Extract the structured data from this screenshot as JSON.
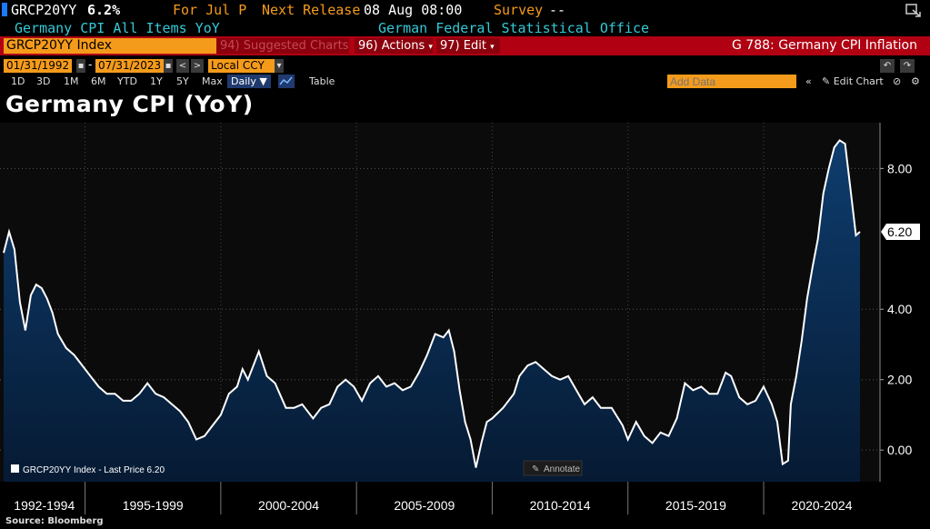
{
  "header": {
    "ticker": "GRCP20YY",
    "last_value": "6.2%",
    "period_label": "For Jul P",
    "next_release_label": "Next Release",
    "next_release_date": "08 Aug 08:00",
    "survey_label": "Survey",
    "survey_value": "--",
    "security_name": "Germany CPI All Items YoY",
    "source_name": "German Federal Statistical Office"
  },
  "toolbar": {
    "index_field": "GRCP20YY Index",
    "suggested_charts": "94) Suggested Charts",
    "actions": "96) Actions",
    "edit": "97) Edit",
    "chart_id": "G 788: Germany CPI Inflation"
  },
  "date_range": {
    "start": "01/31/1992",
    "end": "07/31/2023",
    "currency": "Local CCY"
  },
  "range_buttons": [
    "1D",
    "3D",
    "1M",
    "6M",
    "YTD",
    "1Y",
    "5Y",
    "Max"
  ],
  "frequency": "Daily ▼",
  "table_label": "Table",
  "add_data_placeholder": "Add Data",
  "edit_chart_label": "Edit Chart",
  "colors": {
    "accent_orange": "#f59b1b",
    "bar_red": "#b00012",
    "line": "#ffffff",
    "area_top": "#0e3d6e",
    "area_bottom": "#061a33"
  },
  "chart_data": {
    "type": "area",
    "title": "Germany CPI (YoY)",
    "series": [
      {
        "name": "GRCP20YY Index",
        "x": [
          1992.0,
          1992.2,
          1992.4,
          1992.6,
          1992.8,
          1993.0,
          1993.2,
          1993.4,
          1993.6,
          1993.8,
          1994.0,
          1994.3,
          1994.6,
          1994.9,
          1995.2,
          1995.5,
          1995.8,
          1996.1,
          1996.4,
          1996.7,
          1997.0,
          1997.3,
          1997.6,
          1997.9,
          1998.2,
          1998.5,
          1998.8,
          1999.1,
          1999.4,
          1999.7,
          2000.0,
          2000.3,
          2000.6,
          2000.8,
          2001.0,
          2001.4,
          2001.7,
          2002.0,
          2002.4,
          2002.7,
          2003.0,
          2003.4,
          2003.7,
          2004.0,
          2004.3,
          2004.6,
          2004.9,
          2005.2,
          2005.5,
          2005.8,
          2006.1,
          2006.4,
          2006.7,
          2007.0,
          2007.3,
          2007.6,
          2007.9,
          2008.2,
          2008.4,
          2008.6,
          2008.8,
          2009.0,
          2009.2,
          2009.4,
          2009.6,
          2009.8,
          2010.0,
          2010.4,
          2010.8,
          2011.0,
          2011.3,
          2011.6,
          2011.9,
          2012.2,
          2012.5,
          2012.8,
          2013.1,
          2013.4,
          2013.7,
          2014.0,
          2014.4,
          2014.8,
          2015.0,
          2015.3,
          2015.6,
          2015.9,
          2016.2,
          2016.5,
          2016.8,
          2017.1,
          2017.4,
          2017.7,
          2018.0,
          2018.3,
          2018.6,
          2018.8,
          2019.1,
          2019.4,
          2019.7,
          2020.0,
          2020.3,
          2020.5,
          2020.7,
          2020.9,
          2021.0,
          2021.2,
          2021.4,
          2021.6,
          2021.8,
          2022.0,
          2022.2,
          2022.4,
          2022.6,
          2022.8,
          2023.0,
          2023.2,
          2023.4,
          2023.55
        ],
        "y": [
          5.6,
          6.2,
          5.7,
          4.2,
          3.4,
          4.4,
          4.7,
          4.6,
          4.3,
          3.9,
          3.3,
          2.9,
          2.7,
          2.4,
          2.1,
          1.8,
          1.6,
          1.6,
          1.4,
          1.4,
          1.6,
          1.9,
          1.6,
          1.5,
          1.3,
          1.1,
          0.8,
          0.3,
          0.4,
          0.7,
          1.0,
          1.6,
          1.8,
          2.3,
          2.0,
          2.8,
          2.1,
          1.9,
          1.2,
          1.2,
          1.3,
          0.9,
          1.2,
          1.3,
          1.8,
          2.0,
          1.8,
          1.4,
          1.9,
          2.1,
          1.8,
          1.9,
          1.7,
          1.8,
          2.2,
          2.7,
          3.3,
          3.2,
          3.4,
          2.8,
          1.7,
          0.8,
          0.3,
          -0.5,
          0.2,
          0.8,
          0.9,
          1.2,
          1.6,
          2.1,
          2.4,
          2.5,
          2.3,
          2.1,
          2.0,
          2.1,
          1.7,
          1.3,
          1.5,
          1.2,
          1.2,
          0.7,
          0.3,
          0.8,
          0.4,
          0.2,
          0.5,
          0.4,
          0.9,
          1.9,
          1.7,
          1.8,
          1.6,
          1.6,
          2.2,
          2.1,
          1.5,
          1.3,
          1.4,
          1.8,
          1.3,
          0.8,
          -0.4,
          -0.3,
          1.3,
          2.1,
          3.1,
          4.3,
          5.2,
          6.0,
          7.3,
          8.0,
          8.6,
          8.8,
          8.7,
          7.4,
          6.1,
          6.2
        ]
      }
    ],
    "legend": "GRCP20YY Index - Last Price 6.20",
    "last_price": "6.20",
    "annotate_label": "Annotate",
    "x_period_labels": [
      "1992-1994",
      "1995-1999",
      "2000-2004",
      "2005-2009",
      "2010-2014",
      "2015-2019",
      "2020-2024"
    ],
    "y_ticks": [
      "8.00",
      "4.00",
      "2.00",
      "0.00"
    ],
    "ylim": [
      -0.9,
      9.3
    ],
    "xlim": [
      1992.0,
      2023.75
    ],
    "grid": true,
    "legend_position": "bottom-left"
  },
  "footer": {
    "source": "Source: Bloomberg"
  }
}
